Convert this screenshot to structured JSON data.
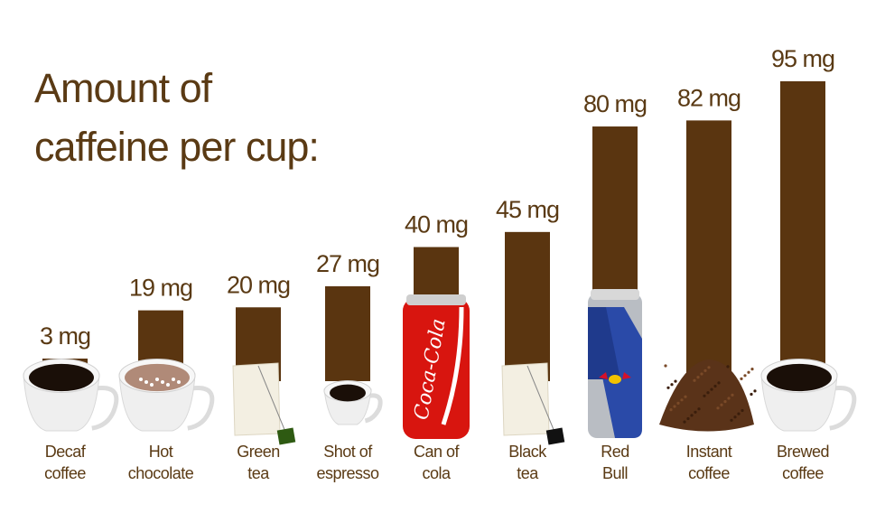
{
  "chart_data": {
    "type": "bar",
    "title": "Amount of caffeine per cup:",
    "title_lines": [
      "Amount of",
      "caffeine per cup:"
    ],
    "categories": [
      [
        "Decaf",
        "coffee"
      ],
      [
        "Hot",
        "chocolate"
      ],
      [
        "Green",
        "tea"
      ],
      [
        "Shot of",
        "espresso"
      ],
      [
        "Can of",
        "cola"
      ],
      [
        "Black",
        "tea"
      ],
      [
        "Red",
        "Bull"
      ],
      [
        "Instant",
        "coffee"
      ],
      [
        "Brewed",
        "coffee"
      ]
    ],
    "values": [
      3,
      19,
      20,
      27,
      40,
      45,
      80,
      82,
      95
    ],
    "value_labels": [
      "3 mg",
      "19 mg",
      "20 mg",
      "27 mg",
      "40 mg",
      "45 mg",
      "80 mg",
      "82 mg",
      "95 mg"
    ],
    "icons": [
      "coffee-cup",
      "hot-chocolate-cup",
      "green-tea-bag",
      "espresso-cup",
      "cola-can",
      "black-tea-bag",
      "red-bull-can",
      "instant-coffee-pile",
      "coffee-cup"
    ],
    "can_logo_text": "Coca-Cola",
    "unit": "mg",
    "ylim": [
      0,
      95
    ],
    "grid": false,
    "legend": "none",
    "colors": {
      "bar": "#5a3510",
      "text": "#5a3a14",
      "background": "#ffffff"
    }
  }
}
